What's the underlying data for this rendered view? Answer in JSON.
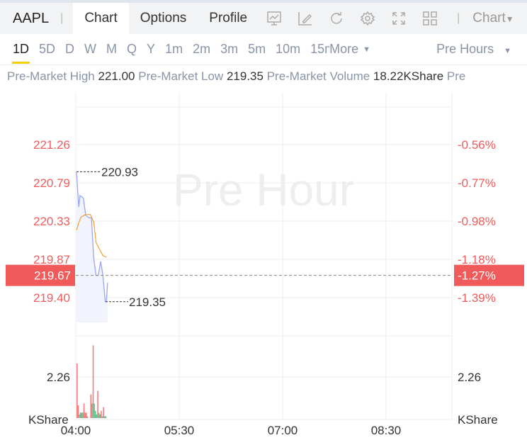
{
  "header": {
    "symbol": "AAPL",
    "tabs": [
      "Chart",
      "Options",
      "Profile"
    ],
    "chart_menu": "Chart"
  },
  "periods": [
    "1D",
    "5D",
    "D",
    "W",
    "M",
    "Q",
    "Y",
    "1m",
    "2m",
    "3m",
    "5m",
    "10m",
    "15m",
    "More"
  ],
  "session": "Pre Hours",
  "info": {
    "high_label": "Pre-Market High",
    "high": "221.00",
    "low_label": "Pre-Market Low",
    "low": "219.35",
    "vol_label": "Pre-Market Volume",
    "vol": "18.22KShare",
    "more": "Pre"
  },
  "watermark": "Pre Hour",
  "chart_data": {
    "type": "line",
    "price_ticks": [
      "221.26",
      "220.79",
      "220.33",
      "219.87",
      "219.40"
    ],
    "pct_ticks": [
      "-0.56%",
      "-0.77%",
      "-0.98%",
      "-1.18%",
      "-1.39%"
    ],
    "current_price": "219.67",
    "current_pct": "-1.27%",
    "max_label": "220.93",
    "min_label": "219.35",
    "vol_tick": "2.26",
    "vol_unit": "KShare",
    "x_ticks": [
      "04:00",
      "05:30",
      "07:00",
      "08:30"
    ],
    "price_minutes": [
      0,
      2,
      3,
      6,
      8,
      11,
      13,
      15,
      17,
      19,
      21,
      23,
      25,
      26,
      27
    ],
    "price": [
      220.93,
      220.5,
      220.64,
      220.61,
      220.4,
      220.37,
      220.37,
      219.88,
      219.67,
      219.67,
      219.84,
      219.67,
      219.35,
      219.35,
      219.58
    ],
    "avg_minutes": [
      0,
      2,
      4,
      8,
      12,
      15,
      17,
      20,
      23,
      26
    ],
    "avg": [
      220.22,
      220.31,
      220.38,
      220.41,
      220.41,
      220.32,
      220.07,
      219.99,
      219.91,
      219.89
    ],
    "vol_minutes": [
      0,
      1,
      2,
      3,
      4,
      5,
      6,
      7,
      8,
      9,
      10,
      11,
      12,
      13,
      14,
      15,
      16,
      17,
      18,
      19,
      20,
      21,
      22,
      23,
      24,
      25
    ],
    "volume": [
      3.0,
      0.7,
      0.2,
      0.3,
      0.3,
      0.3,
      0.8,
      0.3,
      0.3,
      0.1,
      0,
      0,
      1.3,
      0.8,
      4.0,
      0.8,
      0.4,
      0.2,
      1.5,
      0.3,
      0.2,
      0.4,
      0.1,
      0.6,
      0.1,
      0.1
    ],
    "vol_up": [
      0,
      0,
      1,
      1,
      0,
      1,
      0,
      0,
      0,
      0,
      0,
      0,
      0,
      1,
      0,
      1,
      1,
      1,
      0,
      1,
      1,
      0,
      1,
      0,
      1,
      1
    ],
    "colors": {
      "up": "#f05a5a",
      "down": "#2dbd7a",
      "price": "#9aa5f0",
      "avg": "#f5a030",
      "current": "#f05a5a"
    }
  }
}
